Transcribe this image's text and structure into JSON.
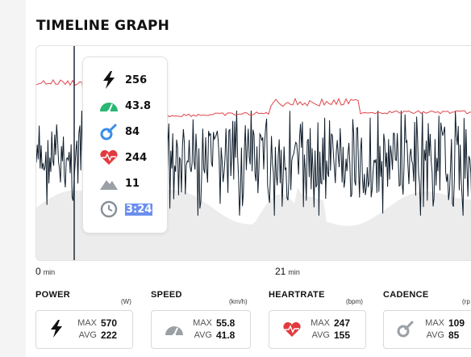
{
  "title": "TIMELINE GRAPH",
  "axis": {
    "start_value": "0",
    "start_unit": "min",
    "mid_value": "21",
    "mid_unit": "min"
  },
  "tooltip": {
    "power": "256",
    "speed": "43.8",
    "cadence": "84",
    "heartrate": "244",
    "elevation": "11",
    "time": "3:24"
  },
  "stats": {
    "power": {
      "label": "POWER",
      "unit": "(W)",
      "max_label": "MAX",
      "avg_label": "AVG",
      "max": "570",
      "avg": "222"
    },
    "speed": {
      "label": "SPEED",
      "unit": "(km/h)",
      "max_label": "MAX",
      "avg_label": "AVG",
      "max": "55.8",
      "avg": "41.8"
    },
    "heartrate": {
      "label": "HEARTRATE",
      "unit": "(bpm)",
      "max_label": "MAX",
      "avg_label": "AVG",
      "max": "247",
      "avg": "155"
    },
    "cadence": {
      "label": "CADENCE",
      "unit": "(rp",
      "max_label": "MAX",
      "avg_label": "AVG",
      "max": "109",
      "avg": "85"
    }
  },
  "colors": {
    "power_line": "#0f1d2b",
    "heartrate_line": "#e0454a",
    "elevation_fill": "#ececec",
    "cursor": "#1e2a38",
    "speed_icon": "#2bb673",
    "cadence_icon": "#3a8ee6",
    "heart_icon": "#e23a3f",
    "selection": "#6b8ff0"
  },
  "icons": [
    "bolt-icon",
    "speedometer-icon",
    "cadence-icon",
    "heart-icon",
    "mountain-icon",
    "clock-icon"
  ]
}
